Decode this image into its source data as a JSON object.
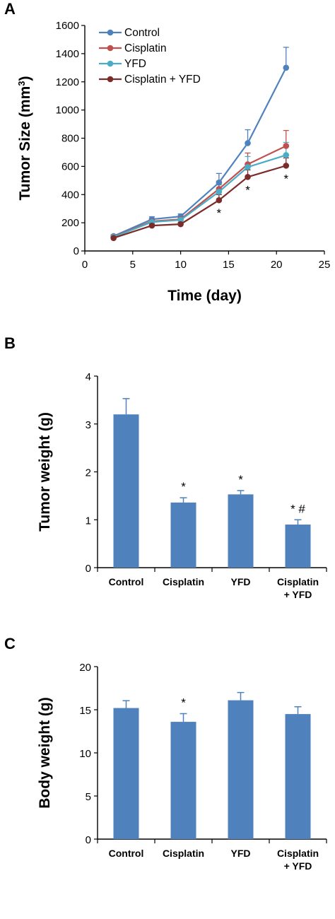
{
  "chart_data": [
    {
      "panel": "A",
      "type": "line",
      "xlabel": "Time (day)",
      "ylabel_main": "Tumor Size (mm",
      "ylabel_sup": "3",
      "ylabel_close": ")",
      "xlim": [
        0,
        25
      ],
      "ylim": [
        0,
        1600
      ],
      "xticks": [
        0,
        5,
        10,
        15,
        20,
        25
      ],
      "yticks": [
        0,
        200,
        400,
        600,
        800,
        1000,
        1200,
        1400,
        1600
      ],
      "x": [
        3,
        7,
        10,
        14,
        17,
        21
      ],
      "series": [
        {
          "name": "Control",
          "color": "#4F81BD",
          "values": [
            105,
            225,
            245,
            485,
            765,
            1300
          ],
          "errors": [
            10,
            18,
            18,
            65,
            95,
            145
          ]
        },
        {
          "name": "Cisplatin",
          "color": "#C0504D",
          "values": [
            100,
            210,
            225,
            440,
            615,
            745
          ],
          "errors": [
            10,
            15,
            15,
            55,
            80,
            110
          ]
        },
        {
          "name": "YFD",
          "color": "#4BACC6",
          "values": [
            98,
            205,
            220,
            420,
            595,
            680
          ],
          "errors": [
            10,
            15,
            15,
            50,
            75,
            90
          ]
        },
        {
          "name": "Cisplatin + YFD",
          "color": "#7B2C2A",
          "values": [
            92,
            180,
            190,
            360,
            525,
            605
          ],
          "errors": [
            8,
            12,
            12,
            40,
            50,
            55
          ]
        }
      ],
      "annotations": [
        {
          "text": "*",
          "x": 14,
          "y": 360
        },
        {
          "text": "*",
          "x": 17,
          "y": 525
        },
        {
          "text": "*",
          "x": 21,
          "y": 605
        }
      ]
    },
    {
      "panel": "B",
      "type": "bar",
      "ylabel": "Tumor weight (g)",
      "ylim": [
        0,
        4
      ],
      "yticks": [
        0,
        1,
        2,
        3,
        4
      ],
      "bar_color": "#4F81BD",
      "categories": [
        {
          "line1": "Control",
          "line2": ""
        },
        {
          "line1": "Cisplatin",
          "line2": ""
        },
        {
          "line1": "YFD",
          "line2": ""
        },
        {
          "line1": "Cisplatin",
          "line2": "+ YFD"
        }
      ],
      "values": [
        3.2,
        1.36,
        1.53,
        0.9
      ],
      "errors": [
        0.33,
        0.1,
        0.08,
        0.1
      ],
      "marks": [
        "",
        "*",
        "*",
        "* #"
      ]
    },
    {
      "panel": "C",
      "type": "bar",
      "ylabel": "Body weight (g)",
      "ylim": [
        0,
        20
      ],
      "yticks": [
        0,
        5,
        10,
        15,
        20
      ],
      "bar_color": "#4F81BD",
      "categories": [
        {
          "line1": "Control",
          "line2": ""
        },
        {
          "line1": "Cisplatin",
          "line2": ""
        },
        {
          "line1": "YFD",
          "line2": ""
        },
        {
          "line1": "Cisplatin",
          "line2": "+ YFD"
        }
      ],
      "values": [
        15.2,
        13.6,
        16.1,
        14.5
      ],
      "errors": [
        0.85,
        0.95,
        0.9,
        0.85
      ],
      "marks": [
        "",
        "*",
        "",
        ""
      ]
    }
  ]
}
